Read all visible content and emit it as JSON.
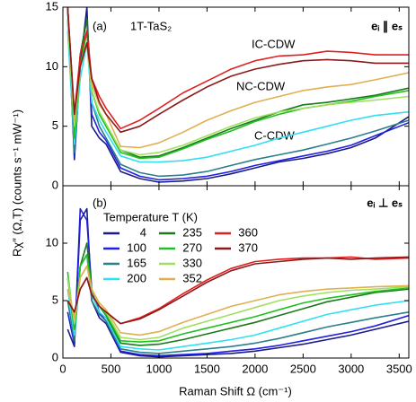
{
  "chart_data": [
    {
      "type": "line",
      "panel_label": "(a)",
      "annotations": [
        "1T-TaS₂",
        "IC-CDW",
        "NC-CDW",
        "C-CDW"
      ],
      "polarization": "eᵢ ∥ eₛ",
      "ylabel": "Rχ″ (Ω,T) (counts s⁻¹ mW⁻¹)",
      "xlim": [
        0,
        3600
      ],
      "ylim": [
        0,
        15
      ],
      "yticks": [
        0,
        5,
        10,
        15
      ],
      "x": [
        50,
        120,
        180,
        250,
        300,
        380,
        450,
        600,
        800,
        1000,
        1250,
        1500,
        1750,
        2000,
        2250,
        2500,
        2750,
        3000,
        3250,
        3600
      ],
      "series": [
        {
          "color": "#1a1a8c",
          "values": [
            15,
            2.2,
            10,
            15,
            5,
            4,
            3.5,
            1.2,
            0.6,
            0.3,
            0.4,
            0.6,
            1,
            1.5,
            2,
            2.3,
            2.7,
            3.2,
            4,
            5.8
          ]
        },
        {
          "color": "#2020e0",
          "values": [
            15,
            2.5,
            11,
            14,
            6,
            4.5,
            3.8,
            1.5,
            0.8,
            0.5,
            0.6,
            0.8,
            1.2,
            1.7,
            2.1,
            2.5,
            2.9,
            3.4,
            4.2,
            5.3
          ]
        },
        {
          "color": "#2a7f8a",
          "values": [
            14,
            2.8,
            10,
            13,
            7,
            5,
            4,
            1.8,
            1.1,
            0.8,
            0.9,
            1.2,
            1.7,
            2.2,
            2.6,
            3,
            3.5,
            4,
            4.6,
            5.5
          ]
        },
        {
          "color": "#30e0f0",
          "values": [
            13,
            3.5,
            9,
            12,
            7,
            5.5,
            4.5,
            2.5,
            2,
            2,
            2.1,
            2.4,
            2.9,
            3.4,
            4,
            4.5,
            5,
            5.5,
            5.9,
            6.2
          ]
        },
        {
          "color": "#1a7a1a",
          "values": [
            15,
            4,
            11,
            14,
            8,
            6,
            5,
            3,
            2.4,
            2.5,
            3.2,
            4,
            4.8,
            5.5,
            6.2,
            6.8,
            7,
            7.3,
            7.6,
            8.2
          ]
        },
        {
          "color": "#20c020",
          "values": [
            15,
            4,
            10,
            13,
            8,
            6,
            5,
            2.8,
            2.3,
            2.4,
            3.1,
            3.9,
            4.6,
            5.4,
            6,
            6.5,
            6.8,
            7.1,
            7.5,
            8
          ]
        },
        {
          "color": "#a0e060",
          "values": [
            14,
            5,
            10,
            12,
            8,
            6.2,
            5.2,
            3,
            2.6,
            2.8,
            3.4,
            4.2,
            5,
            5.7,
            6.2,
            6.5,
            6.8,
            7,
            7.2,
            7.5
          ]
        },
        {
          "color": "#e0b050",
          "values": [
            15,
            5.5,
            10,
            12,
            8.5,
            6.8,
            6,
            3.3,
            3.2,
            3.6,
            4.5,
            5.5,
            6.3,
            7,
            7.5,
            8,
            8.3,
            8.5,
            8.9,
            9.5
          ]
        },
        {
          "color": "#e02020",
          "values": [
            15,
            6,
            11,
            13,
            9,
            7.5,
            6.5,
            4.8,
            5.5,
            6.5,
            7.8,
            8.8,
            9.8,
            10.5,
            10.9,
            11,
            11.3,
            11.2,
            11,
            11
          ]
        },
        {
          "color": "#8b1a1a",
          "values": [
            15,
            6,
            10,
            12,
            9,
            7,
            6,
            4.5,
            5,
            6,
            7.2,
            8.3,
            9.2,
            9.8,
            10.2,
            10.5,
            10.6,
            10.5,
            10.3,
            10.3
          ]
        }
      ]
    },
    {
      "type": "line",
      "panel_label": "(b)",
      "polarization": "eᵢ ⊥ eₛ",
      "legend_title": "Temperature T (K)",
      "xlabel": "Raman Shift Ω (cm⁻¹)",
      "xlim": [
        0,
        3600
      ],
      "xticks": [
        0,
        500,
        1000,
        1500,
        2000,
        2500,
        3000,
        3500
      ],
      "ylim": [
        0,
        15
      ],
      "yticks": [
        0,
        5,
        10
      ],
      "x": [
        50,
        120,
        180,
        250,
        300,
        380,
        450,
        600,
        800,
        1000,
        1250,
        1500,
        1750,
        2000,
        2250,
        2500,
        2750,
        3000,
        3250,
        3600
      ],
      "series": [
        {
          "name": "4",
          "color": "#1a1a8c",
          "values": [
            2.5,
            1,
            12,
            13,
            5,
            3.5,
            3,
            0.5,
            0.2,
            0.1,
            0.2,
            0.3,
            0.4,
            0.6,
            0.9,
            1.2,
            1.6,
            2,
            2.5,
            3.2
          ]
        },
        {
          "name": "100",
          "color": "#2020e0",
          "values": [
            4,
            1.2,
            13,
            12,
            6,
            4,
            3.2,
            0.6,
            0.3,
            0.2,
            0.3,
            0.4,
            0.6,
            0.8,
            1.1,
            1.5,
            1.9,
            2.3,
            2.8,
            3.7
          ]
        },
        {
          "name": "165",
          "color": "#2a7f8a",
          "values": [
            5,
            1.5,
            8,
            9,
            5,
            3.8,
            3.2,
            0.8,
            0.5,
            0.4,
            0.6,
            0.8,
            1,
            1.3,
            1.7,
            2.2,
            2.7,
            3.1,
            3.5,
            4
          ]
        },
        {
          "name": "200",
          "color": "#30e0f0",
          "values": [
            6,
            2,
            8,
            9,
            5.5,
            4,
            3.5,
            1,
            0.8,
            0.7,
            1,
            1.3,
            1.6,
            2,
            2.6,
            3.2,
            3.8,
            4.2,
            4.6,
            5
          ]
        },
        {
          "name": "235",
          "color": "#1a7a1a",
          "values": [
            7,
            2.5,
            8,
            10,
            6,
            4.5,
            3.7,
            1.3,
            1.1,
            1.2,
            1.6,
            2.1,
            2.6,
            3.1,
            3.7,
            4.3,
            4.9,
            5.3,
            5.7,
            6
          ]
        },
        {
          "name": "270",
          "color": "#20c020",
          "values": [
            7.5,
            2.5,
            8,
            9,
            6,
            4.5,
            3.8,
            1.5,
            1.4,
            1.5,
            2.1,
            2.6,
            3.1,
            3.6,
            4.2,
            4.8,
            5.2,
            5.5,
            5.8,
            6.1
          ]
        },
        {
          "name": "330",
          "color": "#a0e060",
          "values": [
            7,
            3,
            7,
            8,
            6,
            4.5,
            4,
            1.8,
            1.6,
            1.8,
            2.6,
            3.2,
            3.8,
            4.4,
            5,
            5.4,
            5.7,
            5.9,
            6,
            6.2
          ]
        },
        {
          "name": "352",
          "color": "#e0b050",
          "values": [
            6,
            3.5,
            7,
            8,
            6,
            4.8,
            4.2,
            2.2,
            2,
            2.3,
            3.1,
            3.8,
            4.5,
            5,
            5.5,
            5.8,
            6,
            6.1,
            6.2,
            6.3
          ]
        },
        {
          "name": "360",
          "color": "#e02020",
          "values": [
            5,
            4,
            6,
            7,
            5.5,
            4.5,
            4,
            3,
            3.5,
            4.3,
            5.6,
            6.8,
            7.8,
            8.4,
            8.6,
            8.7,
            8.7,
            8.8,
            8.6,
            8.7
          ]
        },
        {
          "name": "370",
          "color": "#8b1a1a",
          "values": [
            5,
            4,
            6,
            7,
            5.5,
            4.5,
            4,
            3,
            3.4,
            4.2,
            5.4,
            6.6,
            7.6,
            8.2,
            8.4,
            8.6,
            8.7,
            8.6,
            8.7,
            8.8
          ]
        }
      ]
    }
  ]
}
